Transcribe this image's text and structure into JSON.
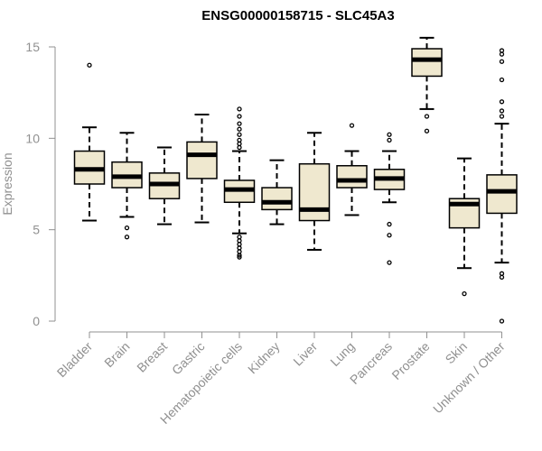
{
  "chart_data": {
    "type": "boxplot",
    "title": "ENSG00000158715 - SLC45A3",
    "xlabel": "",
    "ylabel": "Expression",
    "ylim": [
      0,
      15
    ],
    "yticks": [
      0,
      5,
      10,
      15
    ],
    "colors": {
      "box_fill": "#EFE8CF",
      "box_stroke": "#000000",
      "axis": "#909090",
      "text": "#909090"
    },
    "categories": [
      "Bladder",
      "Brain",
      "Breast",
      "Gastric",
      "Hematopoietic cells",
      "Kidney",
      "Liver",
      "Lung",
      "Pancreas",
      "Prostate",
      "Skin",
      "Unknown / Other"
    ],
    "boxes": [
      {
        "min": 5.5,
        "q1": 7.5,
        "median": 8.3,
        "q3": 9.3,
        "max": 10.6,
        "outliers": [
          14.0
        ]
      },
      {
        "min": 5.7,
        "q1": 7.3,
        "median": 7.9,
        "q3": 8.7,
        "max": 10.3,
        "outliers": [
          5.1,
          4.6
        ]
      },
      {
        "min": 5.3,
        "q1": 6.7,
        "median": 7.5,
        "q3": 8.1,
        "max": 9.5,
        "outliers": []
      },
      {
        "min": 5.4,
        "q1": 7.8,
        "median": 9.1,
        "q3": 9.8,
        "max": 11.3,
        "outliers": []
      },
      {
        "min": 4.8,
        "q1": 6.5,
        "median": 7.2,
        "q3": 7.7,
        "max": 9.3,
        "outliers": [
          11.6,
          11.2,
          10.8,
          10.5,
          10.2,
          9.9,
          9.7,
          9.5,
          4.6,
          4.4,
          4.2,
          4.0,
          3.8,
          3.6,
          3.5
        ]
      },
      {
        "min": 5.3,
        "q1": 6.1,
        "median": 6.5,
        "q3": 7.3,
        "max": 8.8,
        "outliers": []
      },
      {
        "min": 3.9,
        "q1": 5.5,
        "median": 6.1,
        "q3": 8.6,
        "max": 10.3,
        "outliers": []
      },
      {
        "min": 5.8,
        "q1": 7.3,
        "median": 7.7,
        "q3": 8.5,
        "max": 9.3,
        "outliers": [
          10.7
        ]
      },
      {
        "min": 6.5,
        "q1": 7.2,
        "median": 7.8,
        "q3": 8.3,
        "max": 9.3,
        "outliers": [
          10.2,
          9.9,
          5.3,
          4.7,
          3.2
        ]
      },
      {
        "min": 11.6,
        "q1": 13.4,
        "median": 14.3,
        "q3": 14.9,
        "max": 15.5,
        "outliers": [
          11.2,
          10.4
        ]
      },
      {
        "min": 2.9,
        "q1": 5.1,
        "median": 6.4,
        "q3": 6.7,
        "max": 8.9,
        "outliers": [
          1.5
        ]
      },
      {
        "min": 3.2,
        "q1": 5.9,
        "median": 7.1,
        "q3": 8.0,
        "max": 10.8,
        "outliers": [
          14.8,
          14.6,
          14.2,
          13.2,
          12.0,
          11.5,
          11.2,
          2.6,
          2.4,
          0.0
        ]
      }
    ]
  }
}
